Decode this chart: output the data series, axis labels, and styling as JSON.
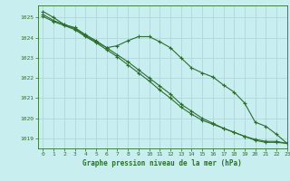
{
  "title": "Graphe pression niveau de la mer (hPa)",
  "bg_color": "#c8eef0",
  "grid_color": "#b0d8dc",
  "line_color": "#2d6e2d",
  "xlim": [
    -0.5,
    23
  ],
  "ylim": [
    1018.5,
    1025.6
  ],
  "yticks": [
    1019,
    1020,
    1021,
    1022,
    1023,
    1024,
    1025
  ],
  "xticks": [
    0,
    1,
    2,
    3,
    4,
    5,
    6,
    7,
    8,
    9,
    10,
    11,
    12,
    13,
    14,
    15,
    16,
    17,
    18,
    19,
    20,
    21,
    22,
    23
  ],
  "series": [
    [
      1025.3,
      1025.0,
      1024.65,
      1024.5,
      1024.15,
      1023.85,
      1023.5,
      1023.6,
      1023.85,
      1024.05,
      1024.05,
      1023.8,
      1023.5,
      1023.0,
      1022.5,
      1022.25,
      1022.05,
      1021.65,
      1021.3,
      1020.75,
      1019.8,
      1019.6,
      1019.2,
      1018.75
    ],
    [
      1025.15,
      1024.85,
      1024.65,
      1024.45,
      1024.1,
      1023.8,
      1023.5,
      1023.15,
      1022.8,
      1022.4,
      1022.0,
      1021.6,
      1021.2,
      1020.7,
      1020.35,
      1020.0,
      1019.75,
      1019.5,
      1019.3,
      1019.1,
      1018.9,
      1018.8,
      1018.8,
      1018.75
    ],
    [
      1025.05,
      1024.8,
      1024.6,
      1024.4,
      1024.05,
      1023.75,
      1023.4,
      1023.05,
      1022.65,
      1022.25,
      1021.85,
      1021.4,
      1021.0,
      1020.55,
      1020.2,
      1019.9,
      1019.7,
      1019.5,
      1019.3,
      1019.1,
      1018.95,
      1018.85,
      1018.85,
      1018.75
    ]
  ]
}
